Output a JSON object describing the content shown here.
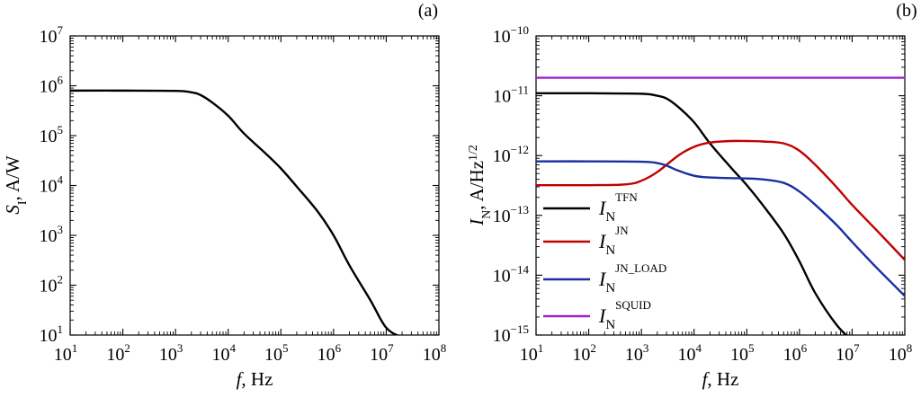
{
  "chart_data": [
    {
      "type": "line",
      "panel_label": "(a)",
      "xlabel": {
        "main": "f",
        "rest": ", Hz"
      },
      "ylabel": {
        "main": "S",
        "sub": "I",
        "rest": ", A/W"
      },
      "x_scale": "log",
      "y_scale": "log",
      "xlim": [
        10,
        100000000
      ],
      "ylim": [
        10,
        10000000
      ],
      "x_ticks": [
        {
          "base": "10",
          "exp": "1",
          "value": 10
        },
        {
          "base": "10",
          "exp": "2",
          "value": 100
        },
        {
          "base": "10",
          "exp": "3",
          "value": 1000
        },
        {
          "base": "10",
          "exp": "4",
          "value": 10000
        },
        {
          "base": "10",
          "exp": "5",
          "value": 100000
        },
        {
          "base": "10",
          "exp": "6",
          "value": 1000000
        },
        {
          "base": "10",
          "exp": "7",
          "value": 10000000
        },
        {
          "base": "10",
          "exp": "8",
          "value": 100000000
        }
      ],
      "y_ticks": [
        {
          "base": "10",
          "exp": "1",
          "value": 10
        },
        {
          "base": "10",
          "exp": "2",
          "value": 100
        },
        {
          "base": "10",
          "exp": "3",
          "value": 1000
        },
        {
          "base": "10",
          "exp": "4",
          "value": 10000
        },
        {
          "base": "10",
          "exp": "5",
          "value": 100000
        },
        {
          "base": "10",
          "exp": "6",
          "value": 1000000
        },
        {
          "base": "10",
          "exp": "7",
          "value": 10000000
        }
      ],
      "grid": false,
      "series": [
        {
          "color": "#000000",
          "x": [
            10,
            100,
            1000,
            2000,
            3000,
            5000,
            10000,
            20000,
            50000,
            100000,
            200000,
            500000,
            1000000,
            2000000,
            5000000,
            10000000,
            20000000
          ],
          "y": [
            800000,
            800000,
            790000,
            740000,
            650000,
            460000,
            250000,
            110000,
            45000,
            22000,
            9500,
            3000,
            1000,
            250,
            50,
            14,
            9
          ]
        }
      ]
    },
    {
      "type": "line",
      "panel_label": "(b)",
      "xlabel": {
        "main": "f",
        "rest": ", Hz"
      },
      "ylabel": {
        "main": "I",
        "sub": "N",
        "rest": ", A/Hz",
        "sup": "1/2"
      },
      "x_scale": "log",
      "y_scale": "log",
      "xlim": [
        10,
        100000000
      ],
      "ylim": [
        1e-15,
        1e-10
      ],
      "x_ticks": [
        {
          "base": "10",
          "exp": "1",
          "value": 10
        },
        {
          "base": "10",
          "exp": "2",
          "value": 100
        },
        {
          "base": "10",
          "exp": "3",
          "value": 1000
        },
        {
          "base": "10",
          "exp": "4",
          "value": 10000
        },
        {
          "base": "10",
          "exp": "5",
          "value": 100000
        },
        {
          "base": "10",
          "exp": "6",
          "value": 1000000
        },
        {
          "base": "10",
          "exp": "7",
          "value": 10000000
        },
        {
          "base": "10",
          "exp": "8",
          "value": 100000000
        }
      ],
      "y_ticks": [
        {
          "base": "10",
          "exp": "−15",
          "value": 1e-15
        },
        {
          "base": "10",
          "exp": "−14",
          "value": 1e-14
        },
        {
          "base": "10",
          "exp": "−13",
          "value": 1e-13
        },
        {
          "base": "10",
          "exp": "−12",
          "value": 1e-12
        },
        {
          "base": "10",
          "exp": "−11",
          "value": 1e-11
        },
        {
          "base": "10",
          "exp": "−10",
          "value": 1e-10
        }
      ],
      "grid": false,
      "legend_position": "bottom-left",
      "series": [
        {
          "label_main": "I",
          "label_sub": "N",
          "label_sup": "TFN",
          "color": "#000000",
          "x": [
            10,
            100,
            1000,
            2000,
            3000,
            5000,
            10000,
            20000,
            50000,
            100000,
            200000,
            500000,
            1000000,
            2000000,
            5000000,
            10000000
          ],
          "y": [
            1.1e-11,
            1.1e-11,
            1.08e-11,
            1e-11,
            9e-12,
            6.5e-12,
            3.6e-12,
            1.6e-12,
            6.3e-13,
            3.2e-13,
            1.5e-13,
            5e-14,
            1.7e-14,
            5e-15,
            1.5e-15,
            8e-16
          ]
        },
        {
          "label_main": "I",
          "label_sub": "N",
          "label_sup": "JN",
          "color": "#c00000",
          "x": [
            10,
            100,
            500,
            1000,
            2000,
            5000,
            10000,
            20000,
            50000,
            100000,
            200000,
            500000,
            1000000,
            2000000,
            5000000,
            10000000,
            30000000,
            100000000
          ],
          "y": [
            3.2e-13,
            3.2e-13,
            3.3e-13,
            3.8e-13,
            5.3e-13,
            1e-12,
            1.4e-12,
            1.65e-12,
            1.75e-12,
            1.75e-12,
            1.72e-12,
            1.6e-12,
            1.2e-12,
            7e-13,
            3e-13,
            1.5e-13,
            5.5e-14,
            1.8e-14
          ]
        },
        {
          "label_main": "I",
          "label_sub": "N",
          "label_sup": "JN_LOAD",
          "color": "#1a2fa0",
          "x": [
            10,
            100,
            1000,
            2000,
            3000,
            5000,
            10000,
            20000,
            50000,
            100000,
            200000,
            500000,
            1000000,
            2000000,
            5000000,
            10000000,
            30000000,
            100000000
          ],
          "y": [
            8e-13,
            8e-13,
            7.9e-13,
            7.5e-13,
            6.8e-13,
            5.6e-13,
            4.6e-13,
            4.3e-13,
            4.2e-13,
            4.15e-13,
            4e-13,
            3.5e-13,
            2.5e-13,
            1.5e-13,
            7e-14,
            3.6e-14,
            1.3e-14,
            4.5e-15
          ]
        },
        {
          "label_main": "I",
          "label_sub": "N",
          "label_sup": "SQUID",
          "color": "#a020c8",
          "x": [
            10,
            100000000
          ],
          "y": [
            2e-11,
            2e-11
          ]
        }
      ]
    }
  ]
}
